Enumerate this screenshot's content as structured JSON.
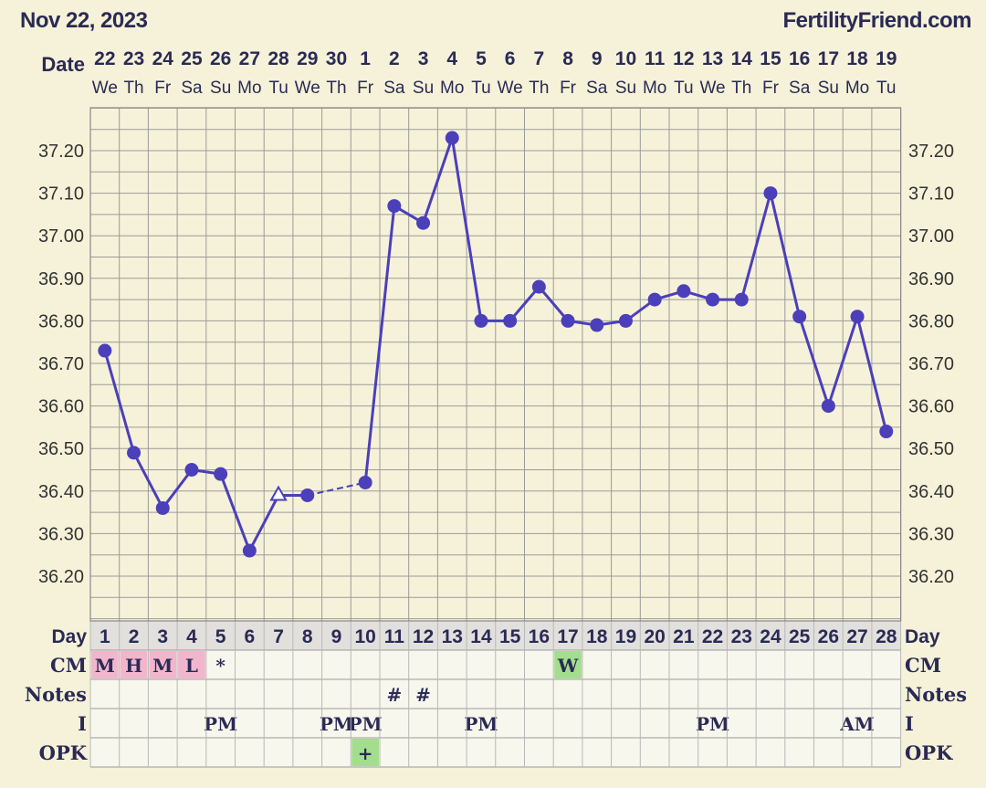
{
  "header": {
    "date": "Nov 22, 2023",
    "site": "FertilityFriend.com"
  },
  "colors": {
    "line": "#4b3fba",
    "grid": "#9a9a9a",
    "chart_bg": "#f6f2d9",
    "cell_bg": "#f8f7ed",
    "day_row_bg": "#e2e0dd",
    "pink": "#f2b6cc",
    "green": "#a3dd8e",
    "text": "#2a2a55"
  },
  "labels": {
    "date": "Date",
    "day": "Day",
    "cm": "CM",
    "notes": "Notes",
    "i": "I",
    "opk": "OPK"
  },
  "chart_data": {
    "type": "line",
    "title": "",
    "xlabel": "Day",
    "ylabel": "",
    "ylim": [
      36.1,
      37.3
    ],
    "yticks": [
      "36.20",
      "36.30",
      "36.40",
      "36.50",
      "36.60",
      "36.70",
      "36.80",
      "36.90",
      "37.00",
      "37.10",
      "37.20"
    ],
    "dates": [
      "22",
      "23",
      "24",
      "25",
      "26",
      "27",
      "28",
      "29",
      "30",
      "1",
      "2",
      "3",
      "4",
      "5",
      "6",
      "7",
      "8",
      "9",
      "10",
      "11",
      "12",
      "13",
      "14",
      "15",
      "16",
      "17",
      "18",
      "19"
    ],
    "weekdays": [
      "We",
      "Th",
      "Fr",
      "Sa",
      "Su",
      "Mo",
      "Tu",
      "We",
      "Th",
      "Fr",
      "Sa",
      "Su",
      "Mo",
      "Tu",
      "We",
      "Th",
      "Fr",
      "Sa",
      "Su",
      "Mo",
      "Tu",
      "We",
      "Th",
      "Fr",
      "Sa",
      "Su",
      "Mo",
      "Tu"
    ],
    "days": [
      "1",
      "2",
      "3",
      "4",
      "5",
      "6",
      "7",
      "8",
      "9",
      "10",
      "11",
      "12",
      "13",
      "14",
      "15",
      "16",
      "17",
      "18",
      "19",
      "20",
      "21",
      "22",
      "23",
      "24",
      "25",
      "26",
      "27",
      "28"
    ],
    "temps": [
      36.73,
      36.49,
      36.36,
      36.45,
      36.44,
      36.26,
      36.39,
      36.39,
      null,
      36.42,
      37.07,
      37.03,
      37.23,
      36.8,
      36.8,
      36.88,
      36.8,
      36.79,
      36.8,
      36.85,
      36.87,
      36.85,
      36.85,
      37.1,
      36.81,
      36.6,
      36.81,
      36.54
    ],
    "open_markers": [
      7
    ],
    "dashed_segments": [
      [
        8,
        10
      ]
    ],
    "cm": [
      "M",
      "H",
      "M",
      "L",
      "*",
      "",
      "",
      "",
      "",
      "",
      "",
      "",
      "",
      "",
      "",
      "",
      "W",
      "",
      "",
      "",
      "",
      "",
      "",
      "",
      "",
      "",
      "",
      ""
    ],
    "cm_colors": [
      "pink",
      "pink",
      "pink",
      "pink",
      "",
      "",
      "",
      "",
      "",
      "",
      "",
      "",
      "",
      "",
      "",
      "",
      "green",
      "",
      "",
      "",
      "",
      "",
      "",
      "",
      "",
      "",
      "",
      ""
    ],
    "notes": [
      "",
      "",
      "",
      "",
      "",
      "",
      "",
      "",
      "",
      "",
      "#",
      "#",
      "",
      "",
      "",
      "",
      "",
      "",
      "",
      "",
      "",
      "",
      "",
      "",
      "",
      "",
      "",
      ""
    ],
    "i": [
      "",
      "",
      "",
      "",
      "PM",
      "",
      "",
      "",
      "PM",
      "PM",
      "",
      "",
      "",
      "PM",
      "",
      "",
      "",
      "",
      "",
      "",
      "",
      "PM",
      "",
      "",
      "",
      "",
      "AM",
      ""
    ],
    "opk": [
      "",
      "",
      "",
      "",
      "",
      "",
      "",
      "",
      "",
      "+",
      "",
      "",
      "",
      "",
      "",
      "",
      "",
      "",
      "",
      "",
      "",
      "",
      "",
      "",
      "",
      "",
      "",
      ""
    ],
    "opk_colors": [
      "",
      "",
      "",
      "",
      "",
      "",
      "",
      "",
      "",
      "green",
      "",
      "",
      "",
      "",
      "",
      "",
      "",
      "",
      "",
      "",
      "",
      "",
      "",
      "",
      "",
      "",
      "",
      ""
    ]
  }
}
